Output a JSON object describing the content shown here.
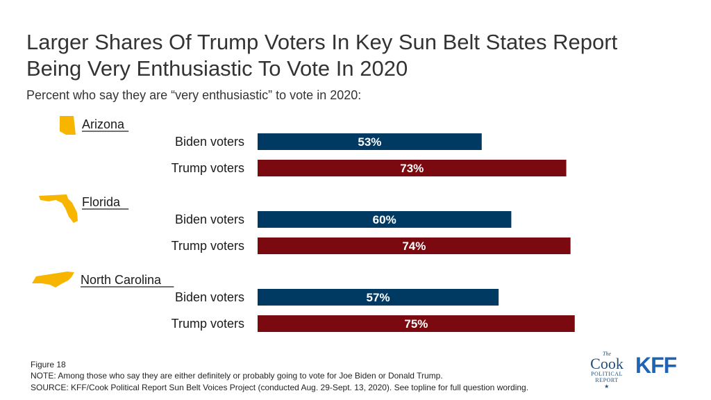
{
  "title": "Larger Shares Of Trump Voters In Key Sun Belt States Report Being Very Enthusiastic To Vote In 2020",
  "subtitle": "Percent who say they are “very enthusiastic” to vote in 2020:",
  "colors": {
    "biden": "#003a63",
    "trump": "#7a0a10",
    "state_icon": "#f7b500"
  },
  "chart_data": {
    "type": "bar",
    "orientation": "horizontal",
    "groups": [
      {
        "name": "Arizona",
        "icon": "arizona-map-icon",
        "bars": [
          {
            "label": "Biden voters",
            "value": 53,
            "display": "53%"
          },
          {
            "label": "Trump voters",
            "value": 73,
            "display": "73%"
          }
        ]
      },
      {
        "name": "Florida",
        "icon": "florida-map-icon",
        "bars": [
          {
            "label": "Biden voters",
            "value": 60,
            "display": "60%"
          },
          {
            "label": "Trump voters",
            "value": 74,
            "display": "74%"
          }
        ]
      },
      {
        "name": "North Carolina",
        "icon": "north-carolina-map-icon",
        "bars": [
          {
            "label": "Biden voters",
            "value": 57,
            "display": "57%"
          },
          {
            "label": "Trump voters",
            "value": 75,
            "display": "75%"
          }
        ]
      }
    ],
    "xlim": [
      0,
      100
    ],
    "grid": false,
    "legend": "none"
  },
  "footer": {
    "figure": "Figure 18",
    "note": "NOTE: Among those who say they are either definitely or probably going to vote for Joe Biden or Donald Trump.",
    "source": "SOURCE: KFF/Cook Political Report Sun Belt Voices Project (conducted Aug. 29-Sept. 13, 2020). See topline for full question wording."
  },
  "logos": {
    "cook_the": "The",
    "cook_name": "Cook",
    "cook_line1": "POLITICAL",
    "cook_line2": "REPORT",
    "kff": "KFF"
  }
}
